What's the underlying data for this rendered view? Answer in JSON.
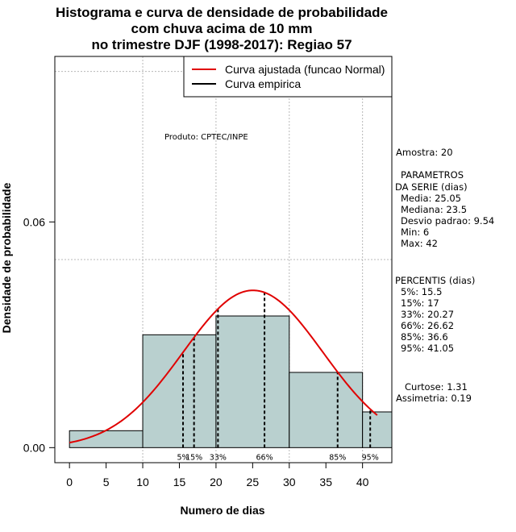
{
  "chart_data": {
    "type": "histogram",
    "title_lines": [
      "Histograma e curva de densidade de probabilidade",
      "com chuva acima de 10 mm",
      "no trimestre DJF (1998-2017): Regiao 57"
    ],
    "xlabel": "Numero de dias",
    "ylabel": "Densidade de probabilidade",
    "xlim": [
      -2,
      44
    ],
    "ylim": [
      -0.004,
      0.104
    ],
    "x_ticks": [
      0,
      5,
      10,
      15,
      20,
      25,
      30,
      35,
      40
    ],
    "y_ticks": [
      {
        "value": 0.0,
        "label": "0.00"
      },
      {
        "value": 0.06,
        "label": "0.06"
      }
    ],
    "gridlines_y": [
      0.05,
      0.1
    ],
    "gridlines_x": [
      10,
      20,
      30,
      40
    ],
    "bins": [
      {
        "from": 0,
        "to": 10,
        "density": 0.0045
      },
      {
        "from": 10,
        "to": 20,
        "density": 0.03
      },
      {
        "from": 20,
        "to": 30,
        "density": 0.035
      },
      {
        "from": 30,
        "to": 40,
        "density": 0.02
      },
      {
        "from": 40,
        "to": 44,
        "density": 0.0095
      }
    ],
    "bar_color": "#b9d0cf",
    "fitted_curve": {
      "name": "Curva ajustada (funcao Normal)",
      "color": "#e00000",
      "mean": 25.05,
      "sd": 9.54,
      "x_range": [
        0,
        42
      ]
    },
    "empirical_curve": {
      "name": "Curva empirica",
      "color": "#000000"
    },
    "legend_position": "top-right",
    "percentile_lines": [
      {
        "label": "5%",
        "x": 15.5
      },
      {
        "label": "15%",
        "x": 17
      },
      {
        "label": "33%",
        "x": 20.27
      },
      {
        "label": "66%",
        "x": 26.62
      },
      {
        "label": "85%",
        "x": 36.6
      },
      {
        "label": "95%",
        "x": 41.05
      }
    ]
  },
  "produto": "Produto: CPTEC/INPE",
  "stats": {
    "amostra": "Amostra: 20",
    "parametros_title_1": "PARAMETROS",
    "parametros_title_2": "DA SERIE (dias)",
    "media": "Media: 25.05",
    "mediana": "Mediana: 23.5",
    "desvio": "Desvio padrao: 9.54",
    "min": "Min: 6",
    "max": "Max: 42",
    "percentis_title": "PERCENTIS (dias)",
    "p5": "5%: 15.5",
    "p15": "15%: 17",
    "p33": "33%: 20.27",
    "p66": "66%: 26.62",
    "p85": "85%: 36.6",
    "p95": "95%: 41.05",
    "curtose": "Curtose: 1.31",
    "assimetria": "Assimetria: 0.19"
  }
}
